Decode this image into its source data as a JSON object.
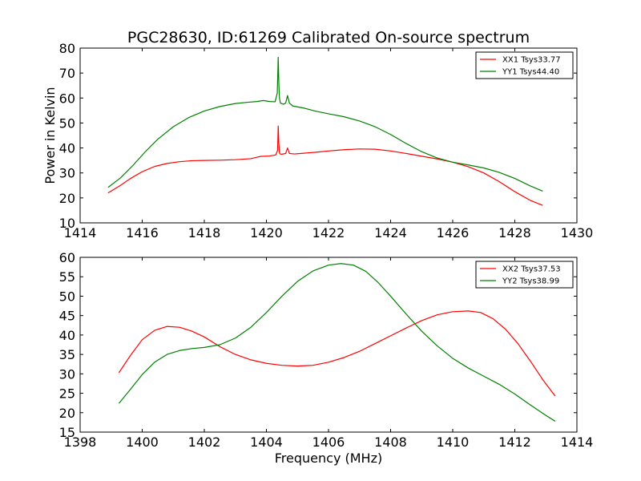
{
  "title": "PGC28630, ID:61269 Calibrated On-source spectrum",
  "colors": {
    "xx": "#ff0000",
    "yy": "#008000"
  },
  "chart_data": [
    {
      "type": "line",
      "xlim": [
        1414,
        1430
      ],
      "ylim": [
        10,
        80
      ],
      "xticks": [
        1414,
        1416,
        1418,
        1420,
        1422,
        1424,
        1426,
        1428,
        1430
      ],
      "yticks": [
        10,
        20,
        30,
        40,
        50,
        60,
        70,
        80
      ],
      "xlabel": "",
      "ylabel": "Power in Kelvin",
      "legend_position": "top-right",
      "grid": false,
      "series": [
        {
          "name": "XX1 Tsys33.77",
          "color": "#ff0000",
          "x": [
            1414.9,
            1415.3,
            1415.6,
            1416.0,
            1416.4,
            1416.8,
            1417.2,
            1417.6,
            1418.0,
            1418.5,
            1419.0,
            1419.5,
            1419.8,
            1420.1,
            1420.3,
            1420.36,
            1420.38,
            1420.4,
            1420.42,
            1420.44,
            1420.5,
            1420.62,
            1420.68,
            1420.74,
            1420.9,
            1421.2,
            1421.6,
            1422.0,
            1422.5,
            1423.0,
            1423.5,
            1424.0,
            1424.5,
            1425.0,
            1425.5,
            1426.0,
            1426.5,
            1427.0,
            1427.5,
            1428.0,
            1428.5,
            1428.9
          ],
          "y": [
            22.0,
            25.0,
            27.6,
            30.5,
            32.6,
            33.8,
            34.5,
            34.9,
            35.0,
            35.1,
            35.3,
            35.7,
            36.6,
            36.8,
            37.2,
            39.0,
            48.8,
            42.0,
            38.0,
            37.6,
            37.5,
            37.8,
            40.0,
            37.8,
            37.6,
            37.9,
            38.3,
            38.8,
            39.3,
            39.6,
            39.5,
            38.8,
            37.8,
            36.7,
            35.6,
            34.3,
            32.5,
            30.0,
            26.5,
            22.5,
            19.0,
            17.0
          ]
        },
        {
          "name": "YY1 Tsys44.40",
          "color": "#008000",
          "x": [
            1414.9,
            1415.3,
            1415.7,
            1416.1,
            1416.5,
            1417.0,
            1417.5,
            1418.0,
            1418.5,
            1419.0,
            1419.4,
            1419.7,
            1419.9,
            1420.1,
            1420.28,
            1420.35,
            1420.38,
            1420.4,
            1420.42,
            1420.45,
            1420.55,
            1420.62,
            1420.68,
            1420.74,
            1420.85,
            1421.2,
            1421.6,
            1422.0,
            1422.5,
            1423.0,
            1423.5,
            1424.0,
            1424.5,
            1425.0,
            1425.5,
            1426.0,
            1426.5,
            1427.0,
            1427.5,
            1428.0,
            1428.5,
            1428.9
          ],
          "y": [
            24.2,
            28.0,
            33.0,
            38.5,
            43.5,
            48.5,
            52.2,
            54.8,
            56.6,
            57.8,
            58.3,
            58.6,
            59.0,
            58.6,
            58.5,
            62.0,
            76.3,
            66.0,
            60.0,
            58.0,
            57.5,
            58.0,
            61.0,
            58.0,
            56.8,
            56.0,
            54.7,
            53.7,
            52.5,
            50.8,
            48.5,
            45.4,
            41.8,
            38.5,
            36.0,
            34.3,
            33.2,
            32.0,
            30.2,
            27.8,
            24.8,
            22.7
          ]
        }
      ]
    },
    {
      "type": "line",
      "xlim": [
        1398,
        1414
      ],
      "ylim": [
        15,
        60
      ],
      "xticks": [
        1398,
        1400,
        1402,
        1404,
        1406,
        1408,
        1410,
        1412,
        1414
      ],
      "yticks": [
        15,
        20,
        25,
        30,
        35,
        40,
        45,
        50,
        55,
        60
      ],
      "xlabel": "Frequency (MHz)",
      "ylabel": "",
      "legend_position": "top-right",
      "grid": false,
      "series": [
        {
          "name": "XX2 Tsys37.53",
          "color": "#ff0000",
          "x": [
            1399.25,
            1399.6,
            1400.0,
            1400.4,
            1400.8,
            1401.2,
            1401.6,
            1402.0,
            1402.5,
            1403.0,
            1403.5,
            1404.0,
            1404.5,
            1405.0,
            1405.5,
            1406.0,
            1406.5,
            1407.0,
            1407.5,
            1408.0,
            1408.5,
            1409.0,
            1409.5,
            1410.0,
            1410.5,
            1410.9,
            1411.3,
            1411.7,
            1412.1,
            1412.5,
            1412.9,
            1413.3
          ],
          "y": [
            30.3,
            34.5,
            38.8,
            41.2,
            42.2,
            42.0,
            41.0,
            39.5,
            37.0,
            35.0,
            33.6,
            32.7,
            32.2,
            32.0,
            32.2,
            33.0,
            34.2,
            35.8,
            37.8,
            39.8,
            41.8,
            43.7,
            45.2,
            46.0,
            46.2,
            45.8,
            44.2,
            41.5,
            37.8,
            33.3,
            28.5,
            24.3
          ]
        },
        {
          "name": "YY2 Tsys38.99",
          "color": "#008000",
          "x": [
            1399.25,
            1399.6,
            1400.0,
            1400.4,
            1400.8,
            1401.2,
            1401.6,
            1402.0,
            1402.5,
            1403.0,
            1403.5,
            1404.0,
            1404.5,
            1405.0,
            1405.5,
            1406.0,
            1406.4,
            1406.8,
            1407.2,
            1407.6,
            1408.0,
            1408.5,
            1409.0,
            1409.5,
            1410.0,
            1410.5,
            1411.0,
            1411.5,
            1412.0,
            1412.5,
            1413.0,
            1413.3
          ],
          "y": [
            22.4,
            25.8,
            29.8,
            33.0,
            35.0,
            36.0,
            36.5,
            36.8,
            37.5,
            39.2,
            42.0,
            45.8,
            50.0,
            53.8,
            56.5,
            58.0,
            58.4,
            58.0,
            56.4,
            53.5,
            50.0,
            45.4,
            41.0,
            37.2,
            34.0,
            31.5,
            29.4,
            27.3,
            24.8,
            22.0,
            19.3,
            17.8
          ]
        }
      ]
    }
  ]
}
